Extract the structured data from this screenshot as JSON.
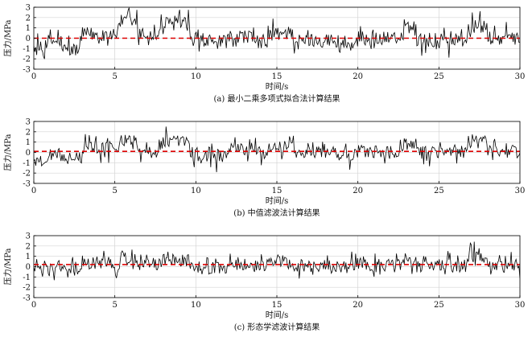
{
  "chart_data": [
    {
      "type": "line",
      "caption": "(a) 最小二乘多项式拟合法计算结果",
      "xlabel": "时间/s",
      "ylabel": "压力/MPa",
      "xlim": [
        0,
        30
      ],
      "ylim": [
        -3,
        3
      ],
      "xticks": [
        "0",
        "5",
        "10",
        "15",
        "20",
        "25",
        "30"
      ],
      "yticks": [
        "3",
        "2",
        "1",
        "0",
        "-1",
        "-2",
        "-3"
      ],
      "grid": true,
      "series": [
        {
          "style": "solid",
          "color": "#000000",
          "segments": [
            {
              "x": [
                0,
                0.7
              ],
              "level": -1.0
            },
            {
              "x": [
                0.7,
                1.7
              ],
              "level": -0.3
            },
            {
              "x": [
                1.7,
                3.0
              ],
              "level": -1.1
            },
            {
              "x": [
                3.0,
                5.2
              ],
              "level": 0.4
            },
            {
              "x": [
                5.2,
                6.4
              ],
              "level": 1.6
            },
            {
              "x": [
                6.4,
                7.8
              ],
              "level": 0.3
            },
            {
              "x": [
                7.8,
                9.6
              ],
              "level": 1.4
            },
            {
              "x": [
                9.6,
                12.0
              ],
              "level": -0.4
            },
            {
              "x": [
                12.0,
                13.5
              ],
              "level": 0.2
            },
            {
              "x": [
                13.5,
                14.5
              ],
              "level": -0.3
            },
            {
              "x": [
                14.5,
                16.0
              ],
              "level": 0.4
            },
            {
              "x": [
                16.0,
                18.5
              ],
              "level": -0.2
            },
            {
              "x": [
                18.5,
                20.0
              ],
              "level": -0.6
            },
            {
              "x": [
                20.0,
                22.8
              ],
              "level": 0.0
            },
            {
              "x": [
                22.8,
                23.6
              ],
              "level": 0.9
            },
            {
              "x": [
                23.6,
                26.8
              ],
              "level": -0.2
            },
            {
              "x": [
                26.8,
                28.0
              ],
              "level": 1.1
            },
            {
              "x": [
                28.0,
                30.0
              ],
              "level": 0.0
            }
          ],
          "noise_amplitude": 0.9
        },
        {
          "style": "dashed",
          "color": "#dd0000",
          "x": [
            0,
            30
          ],
          "y": [
            0.0,
            0.0
          ]
        }
      ]
    },
    {
      "type": "line",
      "caption": "(b) 中值滤波法计算结果",
      "xlabel": "时间/s",
      "ylabel": "压力/MPa",
      "xlim": [
        0,
        30
      ],
      "ylim": [
        -3,
        3
      ],
      "xticks": [
        "0",
        "5",
        "10",
        "15",
        "20",
        "25",
        "30"
      ],
      "yticks": [
        "3",
        "2",
        "1",
        "0",
        "-1",
        "-2",
        "-3"
      ],
      "grid": true,
      "series": [
        {
          "style": "solid",
          "color": "#000000",
          "segments": [
            {
              "x": [
                0,
                1.0
              ],
              "level": -0.7
            },
            {
              "x": [
                1.0,
                1.8
              ],
              "level": -0.2
            },
            {
              "x": [
                1.8,
                3.0
              ],
              "level": -0.6
            },
            {
              "x": [
                3.0,
                5.3
              ],
              "level": 0.5
            },
            {
              "x": [
                5.3,
                6.3
              ],
              "level": 1.2
            },
            {
              "x": [
                6.3,
                7.8
              ],
              "level": 0.3
            },
            {
              "x": [
                7.8,
                9.6
              ],
              "level": 1.0
            },
            {
              "x": [
                9.6,
                12.0
              ],
              "level": -0.3
            },
            {
              "x": [
                12.0,
                13.5
              ],
              "level": 0.3
            },
            {
              "x": [
                13.5,
                14.5
              ],
              "level": 0.0
            },
            {
              "x": [
                14.5,
                16.0
              ],
              "level": 0.6
            },
            {
              "x": [
                16.0,
                18.5
              ],
              "level": 0.0
            },
            {
              "x": [
                18.5,
                20.0
              ],
              "level": -0.2
            },
            {
              "x": [
                20.0,
                22.8
              ],
              "level": 0.1
            },
            {
              "x": [
                22.8,
                23.6
              ],
              "level": 0.8
            },
            {
              "x": [
                23.6,
                26.8
              ],
              "level": 0.0
            },
            {
              "x": [
                26.8,
                28.0
              ],
              "level": 1.0
            },
            {
              "x": [
                28.0,
                30.0
              ],
              "level": 0.1
            }
          ],
          "noise_amplitude": 0.85
        },
        {
          "style": "dashed",
          "color": "#dd0000",
          "x": [
            0,
            30
          ],
          "y": [
            0.1,
            0.1
          ]
        }
      ]
    },
    {
      "type": "line",
      "caption": "(c) 形态学滤波计算结果",
      "xlabel": "时间/s",
      "ylabel": "压力/MPa",
      "xlim": [
        0,
        30
      ],
      "ylim": [
        -3,
        3
      ],
      "xticks": [
        "0",
        "5",
        "10",
        "15",
        "20",
        "25",
        "30"
      ],
      "yticks": [
        "3",
        "2",
        "1",
        "0",
        "-1",
        "-2",
        "-3"
      ],
      "grid": true,
      "series": [
        {
          "style": "solid",
          "color": "#000000",
          "segments": [
            {
              "x": [
                0,
                1.0
              ],
              "level": -0.4
            },
            {
              "x": [
                1.0,
                3.0
              ],
              "level": 0.0
            },
            {
              "x": [
                3.0,
                5.3
              ],
              "level": 0.3
            },
            {
              "x": [
                5.3,
                6.3
              ],
              "level": 0.9
            },
            {
              "x": [
                6.3,
                7.8
              ],
              "level": 0.2
            },
            {
              "x": [
                7.8,
                9.6
              ],
              "level": 0.6
            },
            {
              "x": [
                9.6,
                12.0
              ],
              "level": -0.1
            },
            {
              "x": [
                12.0,
                13.5
              ],
              "level": 0.3
            },
            {
              "x": [
                13.5,
                14.5
              ],
              "level": 0.1
            },
            {
              "x": [
                14.5,
                16.0
              ],
              "level": 0.5
            },
            {
              "x": [
                16.0,
                18.5
              ],
              "level": 0.1
            },
            {
              "x": [
                18.5,
                20.0
              ],
              "level": -0.1
            },
            {
              "x": [
                20.0,
                22.8
              ],
              "level": 0.1
            },
            {
              "x": [
                22.8,
                23.6
              ],
              "level": 0.7
            },
            {
              "x": [
                23.6,
                26.8
              ],
              "level": 0.1
            },
            {
              "x": [
                26.8,
                28.0
              ],
              "level": 0.9
            },
            {
              "x": [
                28.0,
                30.0
              ],
              "level": 0.1
            }
          ],
          "noise_amplitude": 0.85
        },
        {
          "style": "dashed",
          "color": "#dd0000",
          "x": [
            0,
            30
          ],
          "y": [
            0.2,
            0.2
          ]
        }
      ]
    }
  ]
}
